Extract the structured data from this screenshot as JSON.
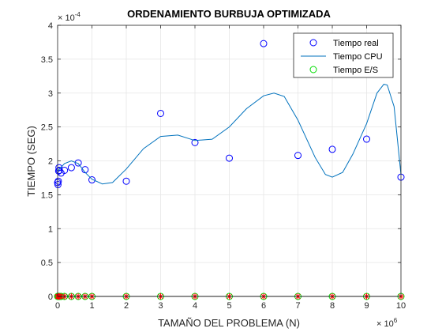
{
  "chart_data": {
    "type": "scatter",
    "title": "ORDENAMIENTO BURBUJA OPTIMIZADA",
    "xlabel": "TAMAÑO DEL PROBLEMA (N)",
    "ylabel": "TIEMPO (SEG)",
    "x_exponent_label": "10",
    "x_exponent_power": "6",
    "y_exponent_label": "10",
    "y_exponent_power": "-4",
    "xlim": [
      0,
      10
    ],
    "ylim": [
      0,
      4
    ],
    "x_ticks": [
      "0",
      "1",
      "2",
      "3",
      "4",
      "5",
      "6",
      "7",
      "8",
      "9",
      "10"
    ],
    "y_ticks": [
      "0",
      "0.5",
      "1",
      "1.5",
      "2",
      "2.5",
      "3",
      "3.5",
      "4"
    ],
    "grid": true,
    "legend_position": "top-right",
    "series": [
      {
        "name": "Tiempo real",
        "kind": "scatter-circle",
        "color": "#0000ff",
        "x": [
          0.0,
          0.01,
          0.02,
          0.03,
          0.04,
          0.05,
          0.1,
          0.2,
          0.4,
          0.6,
          0.8,
          1,
          2,
          3,
          4,
          5,
          6,
          7,
          8,
          9,
          10
        ],
        "y": [
          1.68,
          1.65,
          1.7,
          1.85,
          1.9,
          1.86,
          1.82,
          1.86,
          1.9,
          1.97,
          1.87,
          1.72,
          1.7,
          2.7,
          2.27,
          2.04,
          3.73,
          2.08,
          2.17,
          2.32,
          1.76
        ]
      },
      {
        "name": "Tiempo CPU",
        "kind": "line",
        "color": "#0072bd",
        "x": [
          0,
          0.2,
          0.4,
          0.6,
          0.8,
          1.0,
          1.3,
          1.6,
          2.0,
          2.5,
          3.0,
          3.5,
          4.0,
          4.5,
          5.0,
          5.5,
          6.0,
          6.3,
          6.6,
          7.0,
          7.5,
          7.8,
          8.0,
          8.3,
          8.6,
          9.0,
          9.3,
          9.5,
          9.6,
          9.8,
          10.0
        ],
        "y": [
          1.85,
          1.96,
          2.0,
          1.96,
          1.83,
          1.73,
          1.66,
          1.68,
          1.88,
          2.18,
          2.36,
          2.38,
          2.3,
          2.32,
          2.5,
          2.77,
          2.96,
          3.0,
          2.95,
          2.6,
          2.05,
          1.8,
          1.76,
          1.83,
          2.1,
          2.55,
          3.0,
          3.13,
          3.12,
          2.8,
          1.8
        ]
      },
      {
        "name": "Tiempo E/S",
        "kind": "scatter-circle",
        "color": "#00dd00",
        "x": [
          0.0,
          0.01,
          0.02,
          0.03,
          0.04,
          0.05,
          0.1,
          0.2,
          0.4,
          0.6,
          0.8,
          1,
          2,
          3,
          4,
          5,
          6,
          7,
          8,
          9,
          10
        ],
        "y": [
          0,
          0,
          0,
          0,
          0,
          0,
          0,
          0,
          0,
          0,
          0,
          0,
          0,
          0,
          0,
          0,
          0,
          0,
          0,
          0,
          0
        ]
      },
      {
        "kind": "scatter-star",
        "color": "#ff0000",
        "x": [
          0.0,
          0.01,
          0.02,
          0.03,
          0.04,
          0.05,
          0.1,
          0.2,
          0.4,
          0.6,
          0.8,
          1,
          2,
          3,
          4,
          5,
          6,
          7,
          8,
          9,
          10
        ],
        "y": [
          0,
          0,
          0,
          0,
          0,
          0,
          0,
          0,
          0,
          0,
          0,
          0,
          0,
          0,
          0,
          0,
          0,
          0,
          0,
          0,
          0
        ]
      },
      {
        "kind": "line",
        "color": "#000000",
        "x": [
          0,
          10
        ],
        "y": [
          0,
          0
        ]
      }
    ]
  }
}
